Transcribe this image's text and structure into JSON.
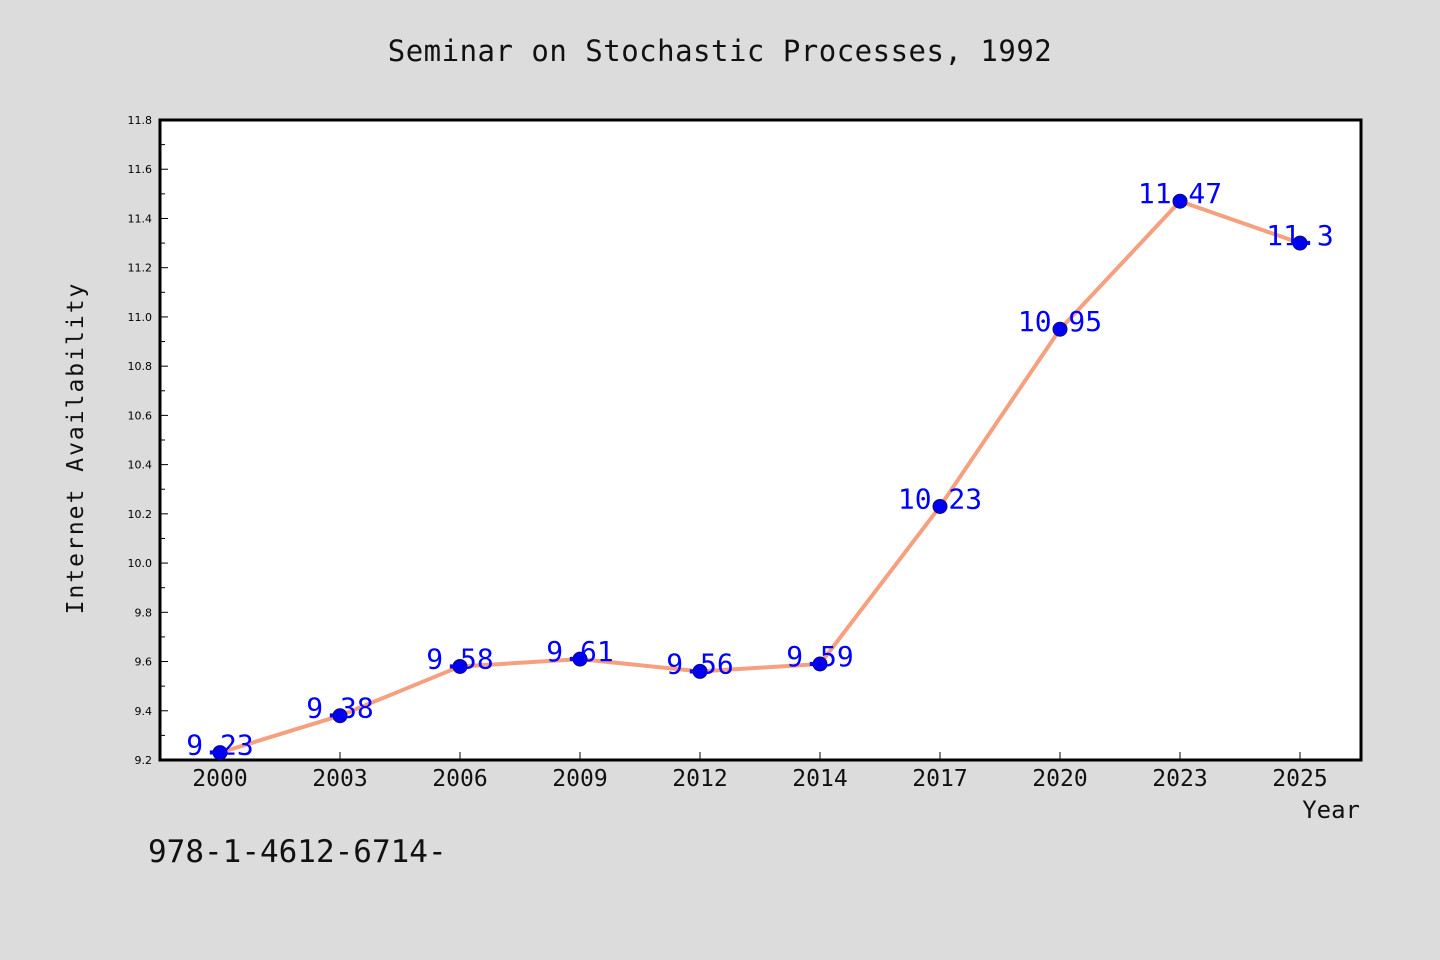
{
  "chart_data": {
    "type": "line",
    "title": "Seminar on Stochastic Processes, 1992",
    "xlabel": "Year",
    "ylabel": "Internet Availability",
    "categories": [
      "2000",
      "2003",
      "2006",
      "2009",
      "2012",
      "2014",
      "2017",
      "2020",
      "2023",
      "2025"
    ],
    "series": [
      {
        "values": [
          9.23,
          9.38,
          9.58,
          9.61,
          9.56,
          9.59,
          10.23,
          10.95,
          11.47,
          11.3
        ],
        "data_labels": [
          "9.23",
          "9.38",
          "9.58",
          "9.61",
          "9.56",
          "9.59",
          "10.23",
          "10.95",
          "11.47",
          "11.3"
        ],
        "line_color": "#f5a07f",
        "marker_color": "#0000ee"
      }
    ],
    "ylim": [
      9.2,
      11.8
    ],
    "yticks": [
      "9.2",
      "9.4",
      "9.6",
      "9.8",
      "10.0",
      "10.2",
      "10.4",
      "10.6",
      "10.8",
      "11.0",
      "11.2",
      "11.4",
      "11.6",
      "11.8"
    ],
    "grid": false,
    "label_color": "#0000ff"
  },
  "footnote": "978-1-4612-6714-"
}
